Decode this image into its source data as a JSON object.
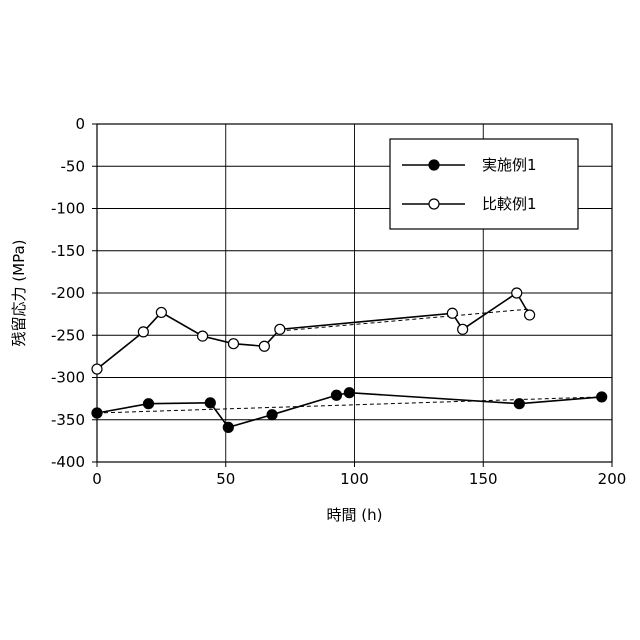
{
  "chart_data": {
    "type": "line",
    "title": "",
    "xlabel": "時間 (h)",
    "ylabel": "残留応力 (MPa)",
    "xlim": [
      0,
      200
    ],
    "ylim": [
      -400,
      0
    ],
    "xticks": [
      0,
      50,
      100,
      150,
      200
    ],
    "xtick_labels": [
      "0",
      "50",
      "100",
      "150",
      "200"
    ],
    "yticks": [
      0,
      -50,
      -100,
      -150,
      -200,
      -250,
      -300,
      -350,
      -400
    ],
    "ytick_labels": [
      "0",
      "-50",
      "-100",
      "-150",
      "-200",
      "-250",
      "-300",
      "-350",
      "-400"
    ],
    "grid": true,
    "legend_position": "top-right",
    "series": [
      {
        "name": "実施例1",
        "marker": "filled-circle",
        "color": "#000000",
        "x": [
          0,
          20,
          44,
          51,
          68,
          93,
          98,
          164,
          196
        ],
        "y": [
          -342,
          -331,
          -330,
          -359,
          -344,
          -321,
          -318,
          -331,
          -323
        ],
        "trend": {
          "style": "dashed",
          "x": [
            0,
            196
          ],
          "y": [
            -342,
            -323
          ]
        }
      },
      {
        "name": "比較例1",
        "marker": "open-circle",
        "color": "#000000",
        "x": [
          0,
          18,
          25,
          41,
          53,
          65,
          71,
          138,
          142,
          163,
          168
        ],
        "y": [
          -290,
          -246,
          -223,
          -251,
          -260,
          -263,
          -243,
          -224,
          -243,
          -200,
          -226
        ],
        "trend": {
          "style": "dashed",
          "x": [
            71,
            168
          ],
          "y": [
            -245,
            -219
          ]
        }
      }
    ]
  }
}
